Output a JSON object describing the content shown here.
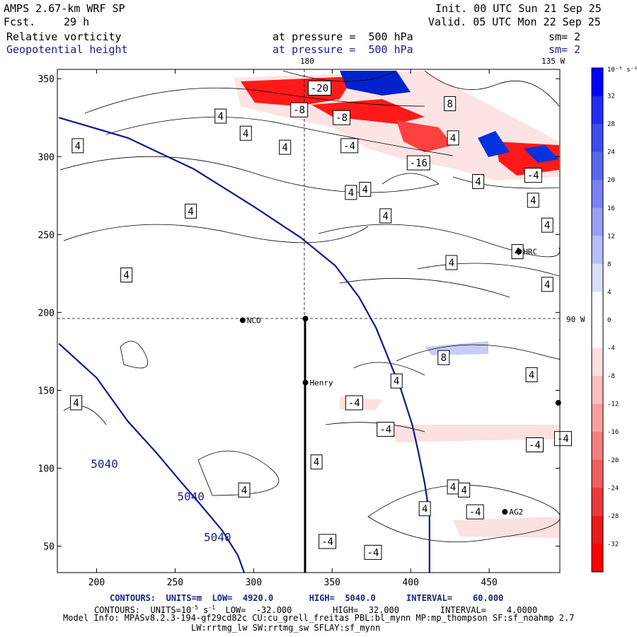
{
  "header": {
    "model": "AMPS 2.67-km WRF SP",
    "fcst_label": "Fcst.",
    "fcst_value": "29 h",
    "init": "Init. 00 UTC Sun 21 Sep 25",
    "valid": "Valid. 05 UTC Mon 22 Sep 25",
    "field1": "Relative vorticity",
    "field2": "Geopotential height",
    "pressure1": "at pressure =  500 hPa",
    "pressure2": "at pressure =  500 hPa",
    "sm1": "sm= 2",
    "sm2": "sm= 2"
  },
  "geo_labels": {
    "lon180": "180",
    "lon135": "135 W",
    "lat90": "90 W"
  },
  "stations": [
    {
      "name": "NCO",
      "x": 293,
      "y": 195
    },
    {
      "name": "Henry",
      "x": 333,
      "y": 155
    },
    {
      "name": "HRC",
      "x": 469,
      "y": 239
    },
    {
      "name": "AG2",
      "x": 460,
      "y": 72
    },
    {
      "name": "",
      "x": 333,
      "y": 196
    },
    {
      "name": "",
      "x": 494,
      "y": 142
    }
  ],
  "footer": {
    "line1": "CONTOURS:  UNITS=m  LOW=  4920.0       HIGH=  5040.0      INTERVAL=    60.000",
    "line2_pre": "CONTOURS:  UNITS=10",
    "line2_exp": "-5",
    "line2_mid": " s",
    "line2_exp2": "-1",
    "line2_post": "  LOW=  -32.000        HIGH=  32.000        INTERVAL=    4.0000",
    "line3": "Model Info: MPASv8.2.3-194-gf29cd82c CU:cu_grell_freitas PBL:bl_mynn MP:mp_thompson SF:sf_noahmp 2.7",
    "line4": "LW:rrtmg_lw SW:rrtmg_sw SFLAY:sf_mynn"
  },
  "colorbar": {
    "unit": "10⁻⁵ s⁻¹",
    "levels": [
      "32",
      "28",
      "24",
      "20",
      "16",
      "12",
      "8",
      "4",
      "0",
      "-4",
      "-8",
      "-12",
      "-16",
      "-20",
      "-24",
      "-28",
      "-32"
    ],
    "colors": [
      "#0000ff",
      "#1f2ef2",
      "#3e4cee",
      "#5a68f0",
      "#7882f2",
      "#97a0f5",
      "#b8bef8",
      "#dcdffc",
      "#ffffff",
      "#ffffff",
      "#fde0e0",
      "#fbc1c1",
      "#f8a0a0",
      "#f47f7f",
      "#f05e5e",
      "#eb3a3a",
      "#e81a1a",
      "#ff0000"
    ]
  },
  "chart_data": {
    "type": "map-contour",
    "xlim": [
      175,
      495
    ],
    "ylim": [
      33,
      356
    ],
    "x_ticks": [
      200,
      250,
      300,
      350,
      400,
      450
    ],
    "y_ticks": [
      50,
      100,
      150,
      200,
      250,
      300,
      350
    ],
    "vorticity_labels": [
      {
        "text": "-20",
        "x": 342,
        "y": 344
      },
      {
        "text": "-8",
        "x": 329,
        "y": 330
      },
      {
        "text": "-8",
        "x": 356,
        "y": 325
      },
      {
        "text": "8",
        "x": 425,
        "y": 334
      },
      {
        "text": "4",
        "x": 427,
        "y": 312
      },
      {
        "text": "-4",
        "x": 361,
        "y": 307
      },
      {
        "text": "-16",
        "x": 405,
        "y": 296
      },
      {
        "text": "4",
        "x": 320,
        "y": 306
      },
      {
        "text": "4",
        "x": 279,
        "y": 326
      },
      {
        "text": "4",
        "x": 295,
        "y": 315
      },
      {
        "text": "4",
        "x": 188,
        "y": 307
      },
      {
        "text": "4",
        "x": 443,
        "y": 284
      },
      {
        "text": "-4",
        "x": 478,
        "y": 288
      },
      {
        "text": "4",
        "x": 362,
        "y": 277
      },
      {
        "text": "4",
        "x": 371,
        "y": 279
      },
      {
        "text": "4",
        "x": 478,
        "y": 272
      },
      {
        "text": "4",
        "x": 260,
        "y": 265
      },
      {
        "text": "4",
        "x": 384,
        "y": 262
      },
      {
        "text": "4",
        "x": 487,
        "y": 256
      },
      {
        "text": "4",
        "x": 468,
        "y": 239
      },
      {
        "text": "4",
        "x": 426,
        "y": 232
      },
      {
        "text": "4",
        "x": 219,
        "y": 224
      },
      {
        "text": "4",
        "x": 487,
        "y": 218
      },
      {
        "text": "8",
        "x": 421,
        "y": 171
      },
      {
        "text": "4",
        "x": 477,
        "y": 160
      },
      {
        "text": "4",
        "x": 391,
        "y": 156
      },
      {
        "text": "-4",
        "x": 364,
        "y": 142
      },
      {
        "text": "4",
        "x": 187,
        "y": 142
      },
      {
        "text": "-4",
        "x": 384,
        "y": 125
      },
      {
        "text": "-4",
        "x": 479,
        "y": 115
      },
      {
        "text": "-4",
        "x": 497,
        "y": 119
      },
      {
        "text": "4",
        "x": 340,
        "y": 104
      },
      {
        "text": "4",
        "x": 427,
        "y": 88
      },
      {
        "text": "4",
        "x": 434,
        "y": 86
      },
      {
        "text": "4",
        "x": 294,
        "y": 86
      },
      {
        "text": "4",
        "x": 409,
        "y": 74
      },
      {
        "text": "-4",
        "x": 441,
        "y": 72
      },
      {
        "text": "-4",
        "x": 347,
        "y": 53
      },
      {
        "text": "-4",
        "x": 376,
        "y": 46
      }
    ],
    "height_labels": [
      {
        "text": "5040",
        "x": 205,
        "y": 103
      },
      {
        "text": "5040",
        "x": 260,
        "y": 82
      },
      {
        "text": "5040",
        "x": 277,
        "y": 56
      }
    ],
    "height_contours": [
      {
        "value": 5040,
        "points": [
          [
            176,
            325
          ],
          [
            220,
            312
          ],
          [
            262,
            292
          ],
          [
            300,
            268
          ],
          [
            330,
            248
          ],
          [
            352,
            230
          ],
          [
            367,
            210
          ],
          [
            378,
            190
          ],
          [
            386,
            170
          ],
          [
            394,
            150
          ],
          [
            401,
            128
          ],
          [
            405,
            110
          ],
          [
            409,
            90
          ],
          [
            412,
            70
          ],
          [
            412,
            33
          ]
        ]
      },
      {
        "value": 5040,
        "points": [
          [
            176,
            180
          ],
          [
            200,
            158
          ],
          [
            220,
            130
          ],
          [
            238,
            110
          ],
          [
            253,
            92
          ],
          [
            265,
            78
          ],
          [
            280,
            60
          ],
          [
            290,
            44
          ],
          [
            294,
            33
          ]
        ]
      }
    ]
  }
}
